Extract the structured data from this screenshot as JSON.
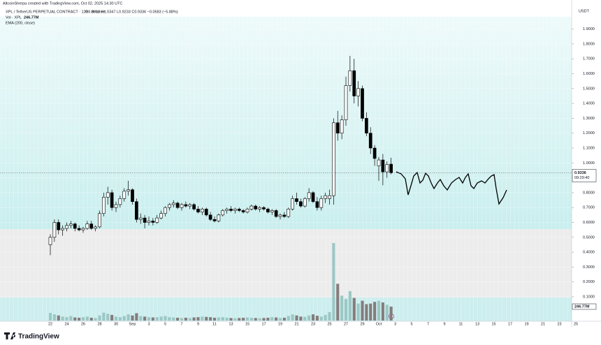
{
  "chart_data": {
    "type": "candlestick",
    "credit": "AltcoinSherpa created with TradingView.com, Oct 02, 2025 14:30 UTC",
    "title": "XPL / TetherUS PERPETUAL CONTRACT · 12h · Binance",
    "ohlc_text": "O0.9918 H1.0347 L0.9233 C0.9336 −0.0583 (−5.88%)",
    "volume_title": "Vol · XPL",
    "volume_title_value": "246.77M",
    "indicator": "EMA (200, close)",
    "axis_unit": "USDT",
    "last_price_label": "0.9336",
    "countdown": "09:29:40",
    "last_volume_label": "246.77M",
    "brand": "TradingView",
    "ylim": [
      0,
      2
    ],
    "yticks": [
      {
        "value": 0.1,
        "label": "0.1000"
      },
      {
        "value": 0.2,
        "label": "0.2000"
      },
      {
        "value": 0.3,
        "label": "0.3000"
      },
      {
        "value": 0.4,
        "label": "0.4000"
      },
      {
        "value": 0.5,
        "label": "0.5000"
      },
      {
        "value": 0.6,
        "label": "0.6000"
      },
      {
        "value": 0.7,
        "label": "0.7000"
      },
      {
        "value": 0.8,
        "label": "0.8000"
      },
      {
        "value": 0.9,
        "label": "0.9000"
      },
      {
        "value": 1.0,
        "label": "1.0000"
      },
      {
        "value": 1.1,
        "label": "1.1000"
      },
      {
        "value": 1.2,
        "label": "1.2000"
      },
      {
        "value": 1.3,
        "label": "1.3000"
      },
      {
        "value": 1.4,
        "label": "1.4000"
      },
      {
        "value": 1.5,
        "label": "1.5000"
      },
      {
        "value": 1.6,
        "label": "1.6000"
      },
      {
        "value": 1.7,
        "label": "1.7000"
      },
      {
        "value": 1.8,
        "label": "1.8000"
      },
      {
        "value": 1.9,
        "label": "1.9000"
      }
    ],
    "xtick_labels": [
      "22",
      "24",
      "26",
      "28",
      "30",
      "Sep",
      "3",
      "5",
      "7",
      "9",
      "11",
      "13",
      "15",
      "17",
      "19",
      "21",
      "23",
      "25",
      "27",
      "29",
      "Oct",
      "3",
      "5",
      "7",
      "9",
      "11",
      "13",
      "15",
      "17",
      "19",
      "21",
      "23",
      "25"
    ],
    "up_color": "#ffffff",
    "down_color": "#000000",
    "volume_up_color": "#9cc7c5",
    "volume_down_color": "#857c7c",
    "open": [
      0.45,
      0.5,
      0.6,
      0.55,
      0.56,
      0.58,
      0.59,
      0.56,
      0.55,
      0.56,
      0.59,
      0.56,
      0.57,
      0.66,
      0.77,
      0.8,
      0.7,
      0.72,
      0.76,
      0.81,
      0.82,
      0.74,
      0.62,
      0.63,
      0.6,
      0.61,
      0.6,
      0.63,
      0.66,
      0.7,
      0.72,
      0.73,
      0.7,
      0.72,
      0.71,
      0.72,
      0.69,
      0.67,
      0.69,
      0.65,
      0.62,
      0.61,
      0.65,
      0.68,
      0.69,
      0.68,
      0.69,
      0.68,
      0.67,
      0.69,
      0.71,
      0.69,
      0.7,
      0.69,
      0.67,
      0.68,
      0.64,
      0.65,
      0.64,
      0.69,
      0.76,
      0.74,
      0.71,
      0.76,
      0.8,
      0.74,
      0.7,
      0.76,
      0.76,
      0.78,
      1.27,
      1.2,
      1.29,
      1.52,
      1.62,
      1.45,
      1.5,
      1.3,
      1.2,
      1.1,
      0.98,
      1.02,
      0.94,
      0.9918
    ],
    "high": [
      0.52,
      0.62,
      0.62,
      0.58,
      0.6,
      0.61,
      0.6,
      0.58,
      0.57,
      0.61,
      0.61,
      0.58,
      0.68,
      0.8,
      0.84,
      0.82,
      0.74,
      0.78,
      0.83,
      0.88,
      0.83,
      0.76,
      0.66,
      0.65,
      0.64,
      0.63,
      0.65,
      0.68,
      0.71,
      0.73,
      0.75,
      0.74,
      0.73,
      0.74,
      0.73,
      0.73,
      0.71,
      0.7,
      0.7,
      0.67,
      0.64,
      0.66,
      0.69,
      0.7,
      0.71,
      0.7,
      0.7,
      0.69,
      0.7,
      0.72,
      0.72,
      0.71,
      0.71,
      0.7,
      0.69,
      0.69,
      0.66,
      0.67,
      0.7,
      0.78,
      0.8,
      0.76,
      0.77,
      0.83,
      0.81,
      0.77,
      0.78,
      0.8,
      0.82,
      1.3,
      1.35,
      1.32,
      1.58,
      1.72,
      1.7,
      1.55,
      1.52,
      1.34,
      1.24,
      1.12,
      1.04,
      1.06,
      1.01,
      1.0347
    ],
    "low": [
      0.38,
      0.47,
      0.52,
      0.51,
      0.54,
      0.56,
      0.54,
      0.54,
      0.53,
      0.55,
      0.55,
      0.54,
      0.56,
      0.64,
      0.72,
      0.68,
      0.67,
      0.7,
      0.74,
      0.78,
      0.72,
      0.6,
      0.59,
      0.56,
      0.58,
      0.58,
      0.59,
      0.62,
      0.64,
      0.68,
      0.7,
      0.69,
      0.68,
      0.7,
      0.69,
      0.68,
      0.66,
      0.65,
      0.64,
      0.61,
      0.6,
      0.6,
      0.64,
      0.66,
      0.67,
      0.66,
      0.67,
      0.66,
      0.66,
      0.68,
      0.68,
      0.67,
      0.68,
      0.66,
      0.65,
      0.63,
      0.62,
      0.63,
      0.63,
      0.68,
      0.72,
      0.7,
      0.7,
      0.74,
      0.73,
      0.68,
      0.68,
      0.73,
      0.72,
      0.72,
      1.15,
      1.16,
      1.25,
      1.48,
      1.4,
      1.38,
      1.28,
      1.18,
      1.06,
      0.98,
      0.88,
      0.85,
      0.9,
      0.9233
    ],
    "close": [
      0.5,
      0.6,
      0.55,
      0.56,
      0.58,
      0.59,
      0.56,
      0.55,
      0.56,
      0.59,
      0.56,
      0.57,
      0.66,
      0.77,
      0.8,
      0.7,
      0.72,
      0.76,
      0.81,
      0.82,
      0.74,
      0.62,
      0.63,
      0.6,
      0.61,
      0.6,
      0.63,
      0.66,
      0.7,
      0.72,
      0.73,
      0.7,
      0.72,
      0.71,
      0.72,
      0.69,
      0.67,
      0.69,
      0.65,
      0.62,
      0.61,
      0.65,
      0.68,
      0.69,
      0.68,
      0.69,
      0.68,
      0.67,
      0.69,
      0.71,
      0.69,
      0.7,
      0.69,
      0.67,
      0.68,
      0.64,
      0.65,
      0.64,
      0.69,
      0.76,
      0.74,
      0.71,
      0.76,
      0.8,
      0.74,
      0.7,
      0.76,
      0.78,
      0.78,
      1.27,
      1.2,
      1.29,
      1.52,
      1.62,
      1.45,
      1.5,
      1.3,
      1.2,
      1.1,
      1.03,
      1.02,
      0.94,
      0.99,
      0.9336
    ],
    "volume": [
      135000000,
      110000000,
      90000000,
      70000000,
      60000000,
      80000000,
      55000000,
      50000000,
      60000000,
      70000000,
      50000000,
      45000000,
      90000000,
      140000000,
      120000000,
      100000000,
      70000000,
      60000000,
      80000000,
      110000000,
      90000000,
      130000000,
      80000000,
      70000000,
      60000000,
      55000000,
      60000000,
      70000000,
      80000000,
      60000000,
      55000000,
      50000000,
      45000000,
      50000000,
      45000000,
      55000000,
      60000000,
      70000000,
      65000000,
      60000000,
      50000000,
      55000000,
      60000000,
      50000000,
      45000000,
      40000000,
      45000000,
      50000000,
      55000000,
      50000000,
      45000000,
      40000000,
      45000000,
      50000000,
      60000000,
      55000000,
      45000000,
      50000000,
      80000000,
      110000000,
      90000000,
      70000000,
      65000000,
      90000000,
      110000000,
      85000000,
      70000000,
      100000000,
      150000000,
      1370000000,
      650000000,
      440000000,
      380000000,
      520000000,
      400000000,
      300000000,
      350000000,
      290000000,
      300000000,
      330000000,
      350000000,
      320000000,
      280000000,
      246770000
    ]
  }
}
